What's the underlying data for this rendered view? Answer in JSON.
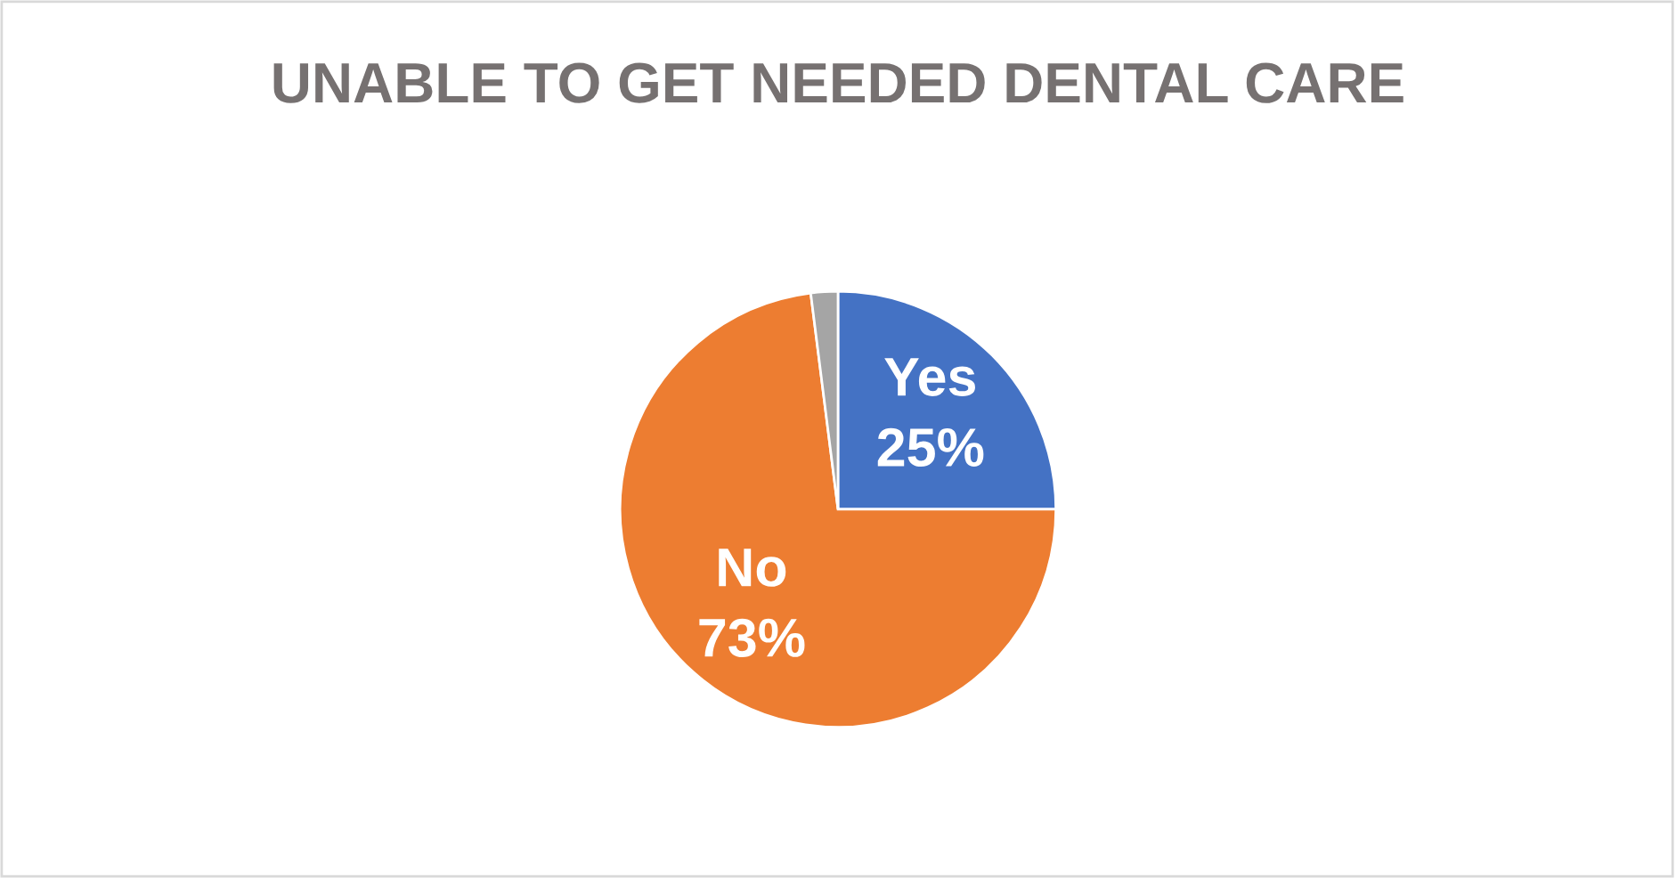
{
  "chart_data": {
    "type": "pie",
    "title": "UNABLE TO GET NEEDED DENTAL CARE",
    "categories": [
      "Yes",
      "No",
      null
    ],
    "values": [
      25,
      73,
      2
    ],
    "value_labels": [
      "25%",
      "73%",
      null
    ],
    "colors": [
      "#4472c4",
      "#ed7d31",
      "#a5a5a5"
    ],
    "legend": false
  }
}
